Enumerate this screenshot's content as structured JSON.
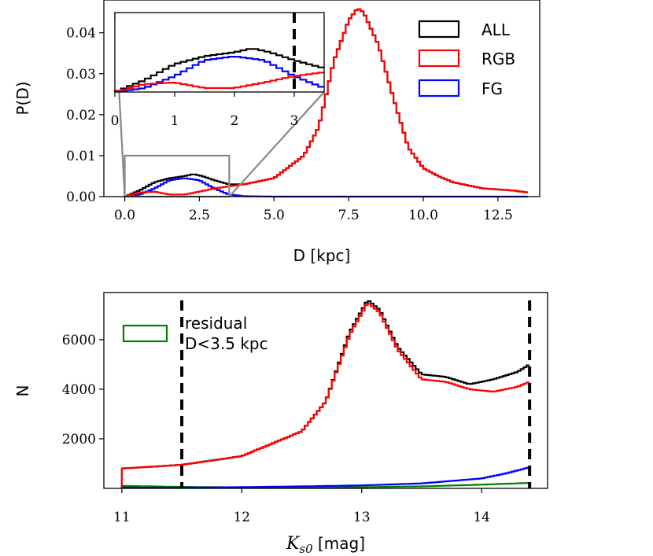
{
  "chart_data": [
    {
      "type": "line",
      "subtype": "step-histogram",
      "xlabel": "D [kpc]",
      "ylabel": "P(D)",
      "xlim": [
        -0.7,
        13.9
      ],
      "ylim": [
        0,
        0.048
      ],
      "xticks": [
        "0.0",
        "2.5",
        "5.0",
        "7.5",
        "10.0",
        "12.5"
      ],
      "xtick_values": [
        0,
        2.5,
        5,
        7.5,
        10,
        12.5
      ],
      "yticks": [
        "0.00",
        "0.01",
        "0.02",
        "0.03",
        "0.04"
      ],
      "ytick_values": [
        0,
        0.01,
        0.02,
        0.03,
        0.04
      ],
      "legend": {
        "placement": "top-right",
        "entries": [
          "ALL",
          "RGB",
          "FG"
        ]
      },
      "colors": {
        "ALL": "#000000",
        "RGB": "#ff0000",
        "FG": "#0000ff",
        "zoom_box": "#888888"
      },
      "zoom_region": {
        "x": [
          0,
          3.5
        ],
        "y": [
          0,
          0.01
        ]
      },
      "series": [
        {
          "name": "ALL",
          "x": [
            0.0,
            0.5,
            1.0,
            1.5,
            2.0,
            2.3,
            2.6,
            3.0,
            3.5,
            4.0,
            5.0,
            6.0,
            6.5,
            7.0,
            7.5,
            7.8,
            8.0,
            8.5,
            9.0,
            9.5,
            10.0,
            10.5,
            11.0,
            12.0,
            13.0,
            13.5
          ],
          "values": [
            0.0,
            0.0015,
            0.0035,
            0.0045,
            0.005,
            0.0055,
            0.005,
            0.004,
            0.003,
            0.003,
            0.0045,
            0.01,
            0.017,
            0.033,
            0.043,
            0.046,
            0.045,
            0.037,
            0.024,
            0.012,
            0.007,
            0.005,
            0.0035,
            0.002,
            0.0015,
            0.001
          ]
        },
        {
          "name": "RGB",
          "x": [
            0.0,
            0.5,
            1.0,
            1.5,
            2.0,
            2.5,
            3.0,
            3.5,
            4.0,
            5.0,
            6.0,
            6.5,
            7.0,
            7.5,
            7.8,
            8.0,
            8.5,
            9.0,
            9.5,
            10.0,
            10.5,
            11.0,
            12.0,
            13.0,
            13.5
          ],
          "values": [
            0.0,
            0.001,
            0.0012,
            0.0005,
            0.0005,
            0.0012,
            0.002,
            0.0025,
            0.003,
            0.0045,
            0.01,
            0.017,
            0.033,
            0.043,
            0.046,
            0.045,
            0.037,
            0.024,
            0.012,
            0.007,
            0.005,
            0.0035,
            0.002,
            0.0015,
            0.001
          ]
        },
        {
          "name": "FG",
          "x": [
            0.0,
            0.5,
            1.0,
            1.5,
            2.0,
            2.5,
            3.0,
            3.5,
            4.0,
            5.0,
            13.5
          ],
          "values": [
            0.0,
            0.0005,
            0.002,
            0.004,
            0.0045,
            0.004,
            0.002,
            0.0005,
            0.0001,
            0.0,
            0.0
          ]
        }
      ],
      "inset": {
        "xlim": [
          0,
          3.5
        ],
        "ylim": [
          0,
          0.01
        ],
        "xticks": [
          "0",
          "1",
          "2",
          "3"
        ],
        "xtick_values": [
          0,
          1,
          2,
          3
        ],
        "dashed_line_x": 3.0
      }
    },
    {
      "type": "line",
      "subtype": "step-histogram",
      "xlabel_main": "K",
      "xlabel_sub": "s0",
      "xlabel_unit": " [mag]",
      "ylabel": "N",
      "xlim": [
        10.85,
        14.55
      ],
      "ylim": [
        0,
        7900
      ],
      "xticks": [
        "11",
        "12",
        "13",
        "14"
      ],
      "xtick_values": [
        11,
        12,
        13,
        14
      ],
      "yticks": [
        "2000",
        "4000",
        "6000"
      ],
      "ytick_values": [
        2000,
        4000,
        6000
      ],
      "dashed_lines_x": [
        11.5,
        14.4
      ],
      "legend": {
        "placement": "top-left",
        "label_lines": [
          "residual",
          "D<3.5 kpc"
        ]
      },
      "colors": {
        "ALL": "#000000",
        "RGB": "#ff0000",
        "FG": "#0000ff",
        "residual": "#008000"
      },
      "series": [
        {
          "name": "ALL",
          "x": [
            11.0,
            11.5,
            12.0,
            12.5,
            12.7,
            12.9,
            13.05,
            13.15,
            13.3,
            13.5,
            13.7,
            13.9,
            14.1,
            14.3,
            14.4
          ],
          "values": [
            800,
            950,
            1300,
            2300,
            3500,
            6300,
            7600,
            7200,
            5700,
            4600,
            4500,
            4200,
            4400,
            4700,
            5000
          ]
        },
        {
          "name": "RGB",
          "x": [
            11.0,
            11.5,
            12.0,
            12.5,
            12.7,
            12.9,
            13.05,
            13.15,
            13.3,
            13.5,
            13.7,
            13.9,
            14.1,
            14.3,
            14.4
          ],
          "values": [
            800,
            950,
            1300,
            2300,
            3500,
            6200,
            7500,
            7100,
            5600,
            4400,
            4300,
            4000,
            3900,
            4100,
            4300
          ]
        },
        {
          "name": "FG",
          "x": [
            11.0,
            11.5,
            12.0,
            12.5,
            13.0,
            13.5,
            14.0,
            14.2,
            14.4
          ],
          "values": [
            30,
            30,
            50,
            80,
            120,
            200,
            400,
            600,
            850
          ]
        },
        {
          "name": "residual",
          "x": [
            11.0,
            11.5,
            12.0,
            12.5,
            13.0,
            13.5,
            14.0,
            14.4
          ],
          "values": [
            100,
            60,
            40,
            40,
            50,
            80,
            150,
            220
          ]
        }
      ]
    }
  ]
}
